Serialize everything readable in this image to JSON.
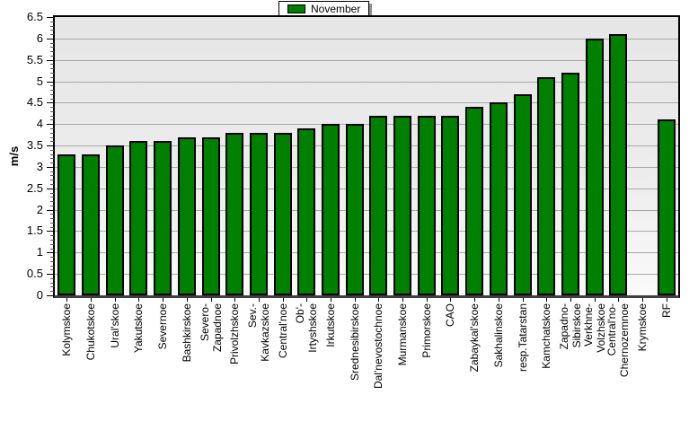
{
  "legend": {
    "position": "top-center"
  },
  "chart_data": {
    "type": "bar",
    "title": "",
    "xlabel": "",
    "ylabel": "m/s",
    "ylim": [
      0,
      6.5
    ],
    "ytick_step": 0.5,
    "ytick_labels": [
      "0",
      "0.5",
      "1",
      "1.5",
      "2",
      "2.5",
      "3",
      "3.5",
      "4",
      "4.5",
      "5",
      "5.5",
      "6",
      "6.5"
    ],
    "grid": true,
    "legend_entries": [
      "November"
    ],
    "legend_position": "top-center",
    "colors": {
      "bar_fill": "#008000",
      "bar_border": "#000000",
      "plot_bg_top": "#e6e6e6",
      "plot_bg_bottom": "#fafafa",
      "gridline": "#a8a8a8"
    },
    "categories": [
      "Kolymskoe",
      "Chukotskoe",
      "Ural'skoe",
      "Yakutskoe",
      "Severnoe",
      "Bashkirskoe",
      "Severo-\nZapadnoe",
      "Privolzhskoe",
      "Sev.-\nKavkazskoe",
      "Central'noe",
      "Ob'-\nIrtyshskoe",
      "Irkutskoe",
      "Srednesibirskoe",
      "Dal'nevostochnoe",
      "Murmanskoe",
      "Primorskoe",
      "CAO",
      "Zabaykal'skoe",
      "Sakhalinskoe",
      "resp.Tatarstan",
      "Kamchatskoe",
      "Zapadno-\nSibirskoe",
      "Verkhne-\nVolzhskoe",
      "Central'no-\nChernozemnoe",
      "Krymskoe",
      "RF"
    ],
    "values": [
      3.3,
      3.3,
      3.5,
      3.6,
      3.6,
      3.7,
      3.7,
      3.8,
      3.8,
      3.8,
      3.9,
      4.0,
      4.0,
      4.2,
      4.2,
      4.2,
      4.2,
      4.4,
      4.5,
      4.7,
      5.1,
      5.2,
      6.0,
      6.1,
      null,
      4.1
    ]
  }
}
